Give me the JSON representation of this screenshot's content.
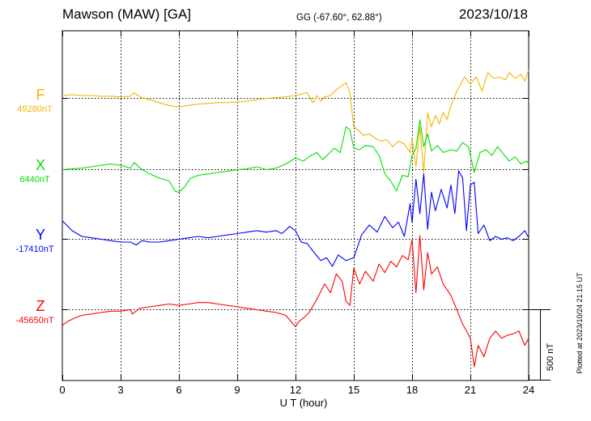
{
  "header": {
    "station": "Mawson (MAW)  [GA]",
    "coords": "GG (-67.60°,  62.88°)",
    "date": "2023/10/18"
  },
  "footer": {
    "xlabel": "U T (hour)",
    "plotted": "Plotted at 2023/10/24 21:15 UT",
    "scale": "500 nT"
  },
  "chart_data": {
    "type": "line",
    "title": "Mawson (MAW)  [GA]",
    "xlabel": "U T (hour)",
    "ylabel": "",
    "xlim": [
      0,
      24
    ],
    "xticks": [
      0,
      3,
      6,
      9,
      12,
      15,
      18,
      21,
      24
    ],
    "grid": true,
    "scale_bar_nT": 500,
    "series": [
      {
        "name": "F",
        "baseline_label": "49280nT",
        "baseline_nT": 49280,
        "color": "#f5b400",
        "x": [
          0,
          0.5,
          1,
          1.5,
          2,
          2.5,
          3,
          3.5,
          3.7,
          4,
          4.5,
          5,
          5.5,
          6,
          6.5,
          7,
          7.5,
          8,
          8.5,
          9,
          9.5,
          10,
          10.5,
          11,
          11.5,
          12,
          12.3,
          12.6,
          12.9,
          13.1,
          13.3,
          13.5,
          13.8,
          14.1,
          14.4,
          14.6,
          14.8,
          15,
          15.2,
          15.5,
          15.8,
          16.1,
          16.4,
          16.7,
          17,
          17.3,
          17.6,
          17.9,
          18,
          18.2,
          18.4,
          18.6,
          18.8,
          19,
          19.2,
          19.4,
          19.6,
          19.8,
          20,
          20.3,
          20.5,
          20.7,
          21,
          21.3,
          21.6,
          21.9,
          22.2,
          22.5,
          22.8,
          23,
          23.3,
          23.6,
          23.8,
          24
        ],
        "y": [
          20,
          25,
          20,
          20,
          15,
          15,
          10,
          15,
          40,
          10,
          -10,
          -30,
          -50,
          -60,
          -50,
          -40,
          -35,
          -30,
          -30,
          -25,
          -20,
          -10,
          0,
          5,
          10,
          20,
          30,
          40,
          -30,
          20,
          -20,
          10,
          20,
          60,
          90,
          110,
          40,
          -200,
          -220,
          -260,
          -250,
          -280,
          -300,
          -290,
          -340,
          -300,
          -320,
          -380,
          -280,
          -480,
          -200,
          -520,
          -100,
          -200,
          -120,
          -180,
          -100,
          -150,
          -50,
          50,
          100,
          150,
          100,
          150,
          50,
          180,
          140,
          150,
          130,
          180,
          140,
          170,
          120,
          200
        ]
      },
      {
        "name": "X",
        "baseline_label": "6440nT",
        "baseline_nT": 6440,
        "color": "#00e000",
        "x": [
          0,
          0.5,
          1,
          1.5,
          2,
          2.5,
          3,
          3.5,
          3.7,
          4,
          4.5,
          5,
          5.5,
          5.8,
          6,
          6.3,
          6.6,
          7,
          7.5,
          8,
          8.5,
          9,
          9.5,
          10,
          10.5,
          11,
          11.5,
          12,
          12.4,
          12.8,
          13.1,
          13.4,
          13.7,
          14,
          14.3,
          14.6,
          14.8,
          15,
          15.3,
          15.6,
          16,
          16.3,
          16.6,
          16.9,
          17.2,
          17.5,
          17.8,
          18,
          18.2,
          18.4,
          18.6,
          18.8,
          19,
          19.3,
          19.6,
          20,
          20.3,
          20.6,
          20.9,
          21.2,
          21.5,
          21.8,
          22.1,
          22.4,
          22.7,
          23,
          23.3,
          23.6,
          23.9,
          24
        ],
        "y": [
          0,
          5,
          10,
          20,
          30,
          40,
          30,
          10,
          50,
          10,
          -30,
          -60,
          -80,
          -150,
          -160,
          -120,
          -60,
          -40,
          -30,
          -20,
          -10,
          0,
          5,
          20,
          0,
          10,
          40,
          80,
          60,
          100,
          120,
          70,
          110,
          150,
          120,
          300,
          280,
          150,
          140,
          170,
          160,
          100,
          -30,
          -80,
          -150,
          -40,
          -50,
          100,
          150,
          350,
          160,
          250,
          130,
          170,
          120,
          140,
          130,
          190,
          160,
          -20,
          120,
          140,
          100,
          160,
          110,
          60,
          90,
          40,
          60,
          40
        ]
      },
      {
        "name": "Y",
        "baseline_label": "-17410nT",
        "baseline_nT": -17410,
        "color": "#0000ff",
        "x": [
          0,
          0.5,
          1,
          1.5,
          2,
          2.5,
          3,
          3.5,
          3.8,
          4.1,
          4.5,
          5,
          5.5,
          6,
          6.5,
          7,
          7.5,
          8,
          8.5,
          9,
          9.5,
          10,
          10.5,
          11,
          11.3,
          11.7,
          12,
          12.3,
          12.6,
          13,
          13.3,
          13.6,
          13.9,
          14.2,
          14.6,
          15,
          15.4,
          15.8,
          16.2,
          16.6,
          17,
          17.3,
          17.6,
          17.9,
          18,
          18.2,
          18.4,
          18.6,
          18.8,
          19,
          19.2,
          19.5,
          19.8,
          20,
          20.2,
          20.4,
          20.6,
          20.8,
          21,
          21.2,
          21.4,
          21.7,
          22,
          22.3,
          22.6,
          22.9,
          23.2,
          23.5,
          23.8,
          24
        ],
        "y": [
          130,
          60,
          20,
          10,
          0,
          -10,
          -20,
          -20,
          -40,
          -10,
          -20,
          -20,
          -10,
          0,
          10,
          20,
          10,
          20,
          30,
          40,
          50,
          60,
          50,
          60,
          40,
          90,
          60,
          -20,
          -30,
          -100,
          -150,
          -130,
          -190,
          -110,
          -150,
          -130,
          30,
          100,
          50,
          160,
          80,
          120,
          20,
          250,
          120,
          420,
          180,
          460,
          70,
          330,
          200,
          350,
          220,
          380,
          180,
          480,
          430,
          60,
          380,
          400,
          40,
          100,
          -10,
          20,
          0,
          10,
          -10,
          20,
          60,
          10
        ]
      },
      {
        "name": "Z",
        "baseline_label": "-45650nT",
        "baseline_nT": -45650,
        "color": "#ff0000",
        "x": [
          0,
          0.3,
          0.6,
          1,
          1.5,
          2,
          2.5,
          3,
          3.5,
          3.6,
          3.8,
          4,
          4.5,
          5,
          5.5,
          6,
          6.5,
          7,
          7.5,
          8,
          8.5,
          9,
          9.5,
          10,
          10.5,
          11,
          11.5,
          12,
          12.2,
          12.4,
          12.7,
          13,
          13.2,
          13.5,
          13.8,
          14.1,
          14.4,
          14.6,
          14.8,
          15,
          15.3,
          15.6,
          16,
          16.3,
          16.6,
          16.9,
          17.2,
          17.5,
          17.8,
          18,
          18.2,
          18.4,
          18.6,
          18.8,
          19,
          19.3,
          19.6,
          20,
          20.3,
          20.6,
          20.8,
          21,
          21.2,
          21.4,
          21.7,
          22,
          22.3,
          22.6,
          22.9,
          23.2,
          23.5,
          23.8,
          24
        ],
        "y": [
          -110,
          -80,
          -60,
          -40,
          -30,
          -20,
          -10,
          -10,
          0,
          -30,
          -10,
          10,
          20,
          30,
          40,
          30,
          40,
          50,
          50,
          40,
          30,
          20,
          10,
          0,
          -10,
          -20,
          -40,
          -120,
          -80,
          -60,
          -20,
          50,
          100,
          180,
          120,
          250,
          200,
          60,
          30,
          290,
          180,
          270,
          200,
          320,
          260,
          340,
          300,
          380,
          350,
          490,
          120,
          520,
          140,
          400,
          250,
          300,
          180,
          100,
          0,
          -100,
          -150,
          -200,
          -400,
          -250,
          -330,
          -200,
          -150,
          -200,
          -180,
          -170,
          -150,
          -250,
          -200
        ]
      }
    ]
  }
}
